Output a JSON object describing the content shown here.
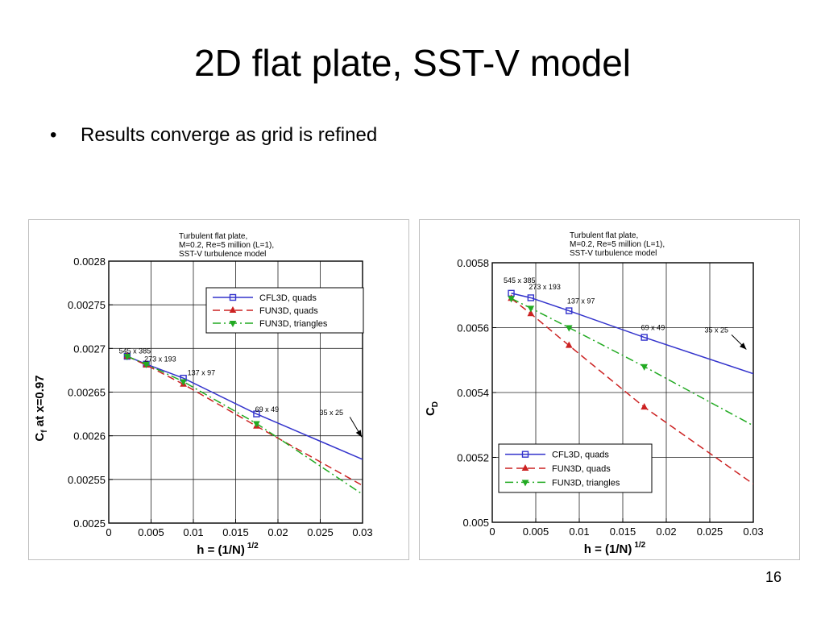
{
  "slide": {
    "title": "2D flat plate, SST-V model",
    "bullet_marker": "•",
    "bullet": "Results converge as grid is refined",
    "page_number": "16"
  },
  "chart_data": [
    {
      "type": "line",
      "title": [
        "Turbulent flat plate,",
        "M=0.2, Re=5 million (L=1),",
        "SST-V turbulence model"
      ],
      "xlabel": "h = (1/N)",
      "xlabel_superscript": "1/2",
      "ylabel": "C",
      "ylabel_subscript": "f",
      "ylabel_suffix": " at x=0.97",
      "xlim": [
        0,
        0.03
      ],
      "ylim": [
        0.0025,
        0.0028
      ],
      "xticks": [
        0,
        0.005,
        0.01,
        0.015,
        0.02,
        0.025,
        0.03
      ],
      "xtick_labels": [
        "0",
        "0.005",
        "0.01",
        "0.015",
        "0.02",
        "0.025",
        "0.03"
      ],
      "yticks": [
        0.0025,
        0.00255,
        0.0026,
        0.00265,
        0.0027,
        0.00275,
        0.0028
      ],
      "ytick_labels": [
        "0.0025",
        "0.00255",
        "0.0026",
        "0.00265",
        "0.0027",
        "0.00275",
        "0.0028"
      ],
      "grid": true,
      "legend_position": "top-right",
      "series": [
        {
          "name": "CFL3D, quads",
          "color": "#3333cc",
          "dash": "solid",
          "marker": "square",
          "x": [
            0.00218,
            0.00443,
            0.00882,
            0.01747,
            0.03
          ],
          "y": [
            0.002691,
            0.002682,
            0.002666,
            0.002625,
            0.002573
          ],
          "marker_count": 4
        },
        {
          "name": "FUN3D, quads",
          "color": "#cc2222",
          "dash": "dashed",
          "marker": "triangle-up",
          "x": [
            0.00218,
            0.00443,
            0.00882,
            0.01747,
            0.03
          ],
          "y": [
            0.002691,
            0.002681,
            0.002659,
            0.002611,
            0.002543
          ],
          "marker_count": 4
        },
        {
          "name": "FUN3D, triangles",
          "color": "#22aa22",
          "dash": "dashdot",
          "marker": "triangle-down",
          "x": [
            0.00218,
            0.00443,
            0.00882,
            0.01747,
            0.03
          ],
          "y": [
            0.002691,
            0.002682,
            0.002662,
            0.002614,
            0.002533
          ],
          "marker_count": 4
        }
      ],
      "annotations": [
        {
          "text": "545 x 385",
          "x": 0.0012,
          "y": 0.0026945
        },
        {
          "text": "273 x 193",
          "x": 0.0042,
          "y": 0.002685
        },
        {
          "text": "137 x 97",
          "x": 0.0093,
          "y": 0.0026695
        },
        {
          "text": "69 x 49",
          "x": 0.0173,
          "y": 0.0026275
        },
        {
          "text": "35 x 25",
          "x": 0.0249,
          "y": 0.0026235
        }
      ],
      "arrow": {
        "from": [
          0.0285,
          0.0026215
        ],
        "to": [
          0.0299,
          0.0025985
        ]
      }
    },
    {
      "type": "line",
      "title": [
        "Turbulent flat plate,",
        "M=0.2, Re=5 million (L=1),",
        "SST-V turbulence model"
      ],
      "xlabel": "h = (1/N)",
      "xlabel_superscript": "1/2",
      "ylabel": "C",
      "ylabel_subscript": "D",
      "ylabel_suffix": "",
      "xlim": [
        0,
        0.03
      ],
      "ylim": [
        0.005,
        0.0058
      ],
      "xticks": [
        0,
        0.005,
        0.01,
        0.015,
        0.02,
        0.025,
        0.03
      ],
      "xtick_labels": [
        "0",
        "0.005",
        "0.01",
        "0.015",
        "0.02",
        "0.025",
        "0.03"
      ],
      "yticks": [
        0.005,
        0.0052,
        0.0054,
        0.0056,
        0.0058
      ],
      "ytick_labels": [
        "0.005",
        "0.0052",
        "0.0054",
        "0.0056",
        "0.0058"
      ],
      "grid": true,
      "legend_position": "bottom-left",
      "series": [
        {
          "name": "CFL3D, quads",
          "color": "#3333cc",
          "dash": "solid",
          "marker": "square",
          "x": [
            0.00218,
            0.00443,
            0.00882,
            0.01747,
            0.03
          ],
          "y": [
            0.005706,
            0.005692,
            0.005652,
            0.00557,
            0.005458
          ],
          "marker_count": 4
        },
        {
          "name": "FUN3D, quads",
          "color": "#cc2222",
          "dash": "dashed",
          "marker": "triangle-up",
          "x": [
            0.00218,
            0.00443,
            0.00882,
            0.01747,
            0.03
          ],
          "y": [
            0.00569,
            0.005643,
            0.005545,
            0.005355,
            0.005118
          ],
          "marker_count": 4
        },
        {
          "name": "FUN3D, triangles",
          "color": "#22aa22",
          "dash": "dashdot",
          "marker": "triangle-down",
          "x": [
            0.00218,
            0.00443,
            0.00882,
            0.01747,
            0.03
          ],
          "y": [
            0.00569,
            0.00566,
            0.0056,
            0.00548,
            0.005298
          ],
          "marker_count": 4
        }
      ],
      "annotations": [
        {
          "text": "545 x 385",
          "x": 0.0013,
          "y": 0.005738
        },
        {
          "text": "273 x 193",
          "x": 0.0042,
          "y": 0.005718
        },
        {
          "text": "137 x 97",
          "x": 0.0086,
          "y": 0.005674
        },
        {
          "text": "69 x 49",
          "x": 0.0171,
          "y": 0.005592
        },
        {
          "text": "35 x 25",
          "x": 0.0244,
          "y": 0.005585
        }
      ],
      "arrow": {
        "from": [
          0.0275,
          0.005578
        ],
        "to": [
          0.0292,
          0.005533
        ]
      }
    }
  ]
}
